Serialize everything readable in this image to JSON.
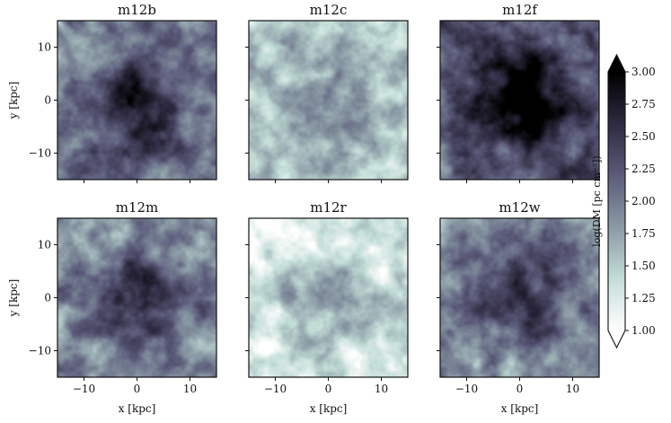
{
  "chart_data": {
    "type": "heatmap",
    "panels": [
      {
        "title": "m12b",
        "concentration": 0.85,
        "clumpiness": 0.55,
        "background": 0.35
      },
      {
        "title": "m12c",
        "concentration": 0.35,
        "clumpiness": 0.45,
        "background": 0.15
      },
      {
        "title": "m12f",
        "concentration": 1.0,
        "clumpiness": 0.6,
        "background": 0.45
      },
      {
        "title": "m12m",
        "concentration": 0.8,
        "clumpiness": 0.55,
        "background": 0.3
      },
      {
        "title": "m12r",
        "concentration": 0.6,
        "clumpiness": 0.5,
        "background": 0.05
      },
      {
        "title": "m12w",
        "concentration": 0.7,
        "clumpiness": 0.6,
        "background": 0.3
      }
    ],
    "xlabel": "x [kpc]",
    "ylabel": "y [kpc]",
    "xlim": [
      -15,
      15
    ],
    "ylim": [
      -15,
      15
    ],
    "xticks": [
      -10,
      0,
      10
    ],
    "yticks": [
      10,
      0,
      -10
    ],
    "colorbar": {
      "label": "log(DM [pc cm⁻³])",
      "range": [
        1.0,
        3.0
      ],
      "ticks": [
        "1.00",
        "1.25",
        "1.50",
        "1.75",
        "2.00",
        "2.25",
        "2.50",
        "2.75",
        "3.00"
      ],
      "extend": "both",
      "colors": [
        "#ffffff",
        "#c3ddd7",
        "#8a9aa5",
        "#5b5b7a",
        "#2e2a40",
        "#000000"
      ]
    }
  }
}
